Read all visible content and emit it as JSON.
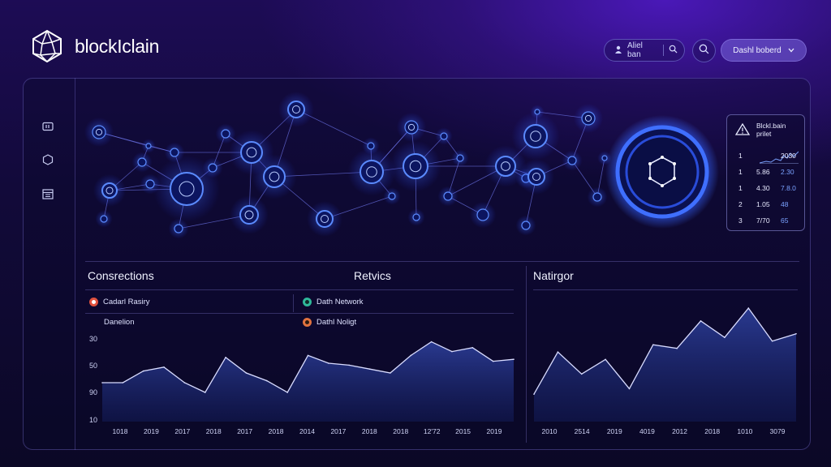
{
  "header": {
    "logo_text": "blockIclain",
    "search_label": "Aliel ban",
    "dashboard_button": "Dashl boberd"
  },
  "sidebar": {
    "items": [
      {
        "icon": "wallet-icon"
      },
      {
        "icon": "hexagon-icon"
      },
      {
        "icon": "ledger-icon"
      }
    ]
  },
  "blockchain_card": {
    "title": "Blckl.bain prilet",
    "rows": [
      {
        "c1": "1",
        "c2": "",
        "c3": "2030",
        "c3_color": "white"
      },
      {
        "c1": "1",
        "c2": "5.86",
        "c3": "2.30",
        "c3_color": "blue"
      },
      {
        "c1": "1",
        "c2": "4.30",
        "c3": "7.8.0",
        "c3_color": "blue"
      },
      {
        "c1": "2",
        "c2": "1.05",
        "c3": "48",
        "c3_color": "blue"
      },
      {
        "c1": "3",
        "c2": "7/70",
        "c3": "65",
        "c3_color": "blue"
      }
    ]
  },
  "connections": {
    "title": "Consrections",
    "legend": [
      {
        "label": "Cadarl Rasiry",
        "color": "#e0523f"
      },
      {
        "label": "Danelion",
        "color": ""
      }
    ]
  },
  "metrics": {
    "title": "Retvics",
    "legend": [
      {
        "label": "Dath Network",
        "color": "#2fb89a"
      },
      {
        "label": "Dathl Noligt",
        "color": "#e0723f"
      }
    ]
  },
  "network_panel": {
    "title": "Natirgor"
  },
  "chart_data": [
    {
      "type": "area",
      "y_ticks": [
        "30",
        "50",
        "90",
        "10"
      ],
      "x_ticks": [
        "1018",
        "2019",
        "2017",
        "2018",
        "2017",
        "2018",
        "2014",
        "2017",
        "2018",
        "2018",
        "12'72",
        "2015",
        "2019"
      ],
      "values": [
        60,
        60,
        66,
        68,
        60,
        55,
        73,
        65,
        61,
        55,
        74,
        70,
        69,
        67,
        65,
        74,
        81,
        76,
        78,
        71,
        72
      ],
      "ylim": [
        40,
        90
      ]
    },
    {
      "type": "area",
      "x_ticks": [
        "2010",
        "2514",
        "2019",
        "4019",
        "2012",
        "2018",
        "1010",
        "3079"
      ],
      "values": [
        55,
        78,
        66,
        74,
        58,
        82,
        80,
        95,
        86,
        102,
        84,
        88
      ],
      "ylim": [
        40,
        110
      ]
    }
  ],
  "colors": {
    "accent": "#3c6bff",
    "node_glow": "#4a7dff",
    "area_fill": "#1b2a70",
    "line": "#d9dcff"
  }
}
